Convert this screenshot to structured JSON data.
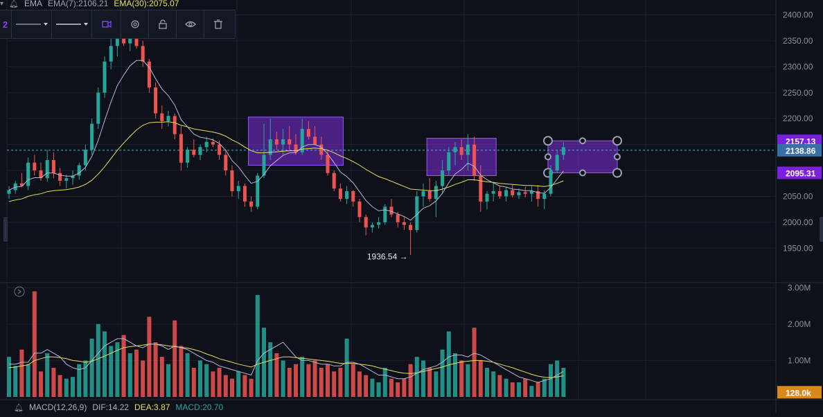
{
  "indicator_top": {
    "name": "EMA",
    "ema7": "EMA(7):2106.21",
    "ema30": "EMA(30):2075.07"
  },
  "indicator_bottom": {
    "name": "MACD(12,26,9)",
    "dif": "DIF:14.22",
    "dea": "DEA:3.87",
    "macd": "MACD:20.70"
  },
  "price_badges": {
    "upper": "2157.13",
    "current": "2138.86",
    "lower": "2095.31",
    "volume": "128.0k"
  },
  "annotations": {
    "low_label": "1936.54 →"
  },
  "colors": {
    "background": "#0e111a",
    "up": "#26a69a",
    "down": "#ef5350",
    "ema7": "#b7b4d6",
    "ema30": "#e6e05a",
    "box_fill": "#7b2fd8",
    "badge_purple": "#7b1fe0",
    "badge_blue": "#3b6fa8",
    "badge_orange": "#d9881a"
  },
  "toolbar_icons": [
    "line-style-icon",
    "line-width-icon",
    "color-icon",
    "settings-icon",
    "lock-icon",
    "eye-icon",
    "trash-icon"
  ],
  "chart_data": [
    {
      "type": "candlestick",
      "y_axis_side": "right",
      "y_ticks": [
        "2400.00",
        "2350.00",
        "2300.00",
        "2250.00",
        "2200.00",
        "2150.00",
        "2100.00",
        "2050.00",
        "2000.00",
        "1950.00"
      ],
      "ylim": [
        1925,
        2410
      ],
      "series": [
        {
          "name": "EMA(7)",
          "type": "line"
        },
        {
          "name": "EMA(30)",
          "type": "line"
        }
      ],
      "ohlc": [
        [
          2055,
          2070,
          2045,
          2062
        ],
        [
          2062,
          2080,
          2055,
          2075
        ],
        [
          2075,
          2095,
          2068,
          2070
        ],
        [
          2070,
          2125,
          2062,
          2115
        ],
        [
          2115,
          2130,
          2090,
          2100
        ],
        [
          2100,
          2115,
          2080,
          2085
        ],
        [
          2085,
          2140,
          2078,
          2120
        ],
        [
          2120,
          2135,
          2085,
          2095
        ],
        [
          2095,
          2105,
          2070,
          2080
        ],
        [
          2080,
          2092,
          2065,
          2085
        ],
        [
          2085,
          2100,
          2072,
          2090
        ],
        [
          2090,
          2115,
          2082,
          2110
        ],
        [
          2110,
          2150,
          2100,
          2140
        ],
        [
          2140,
          2200,
          2130,
          2190
        ],
        [
          2190,
          2260,
          2180,
          2250
        ],
        [
          2250,
          2320,
          2240,
          2310
        ],
        [
          2310,
          2360,
          2295,
          2340
        ],
        [
          2340,
          2375,
          2320,
          2360
        ],
        [
          2360,
          2390,
          2340,
          2345
        ],
        [
          2345,
          2370,
          2330,
          2355
        ],
        [
          2355,
          2380,
          2335,
          2340
        ],
        [
          2340,
          2350,
          2300,
          2310
        ],
        [
          2310,
          2315,
          2250,
          2260
        ],
        [
          2260,
          2270,
          2200,
          2210
        ],
        [
          2210,
          2225,
          2180,
          2195
        ],
        [
          2195,
          2215,
          2185,
          2205
        ],
        [
          2205,
          2210,
          2160,
          2170
        ],
        [
          2170,
          2185,
          2100,
          2115
        ],
        [
          2115,
          2145,
          2105,
          2140
        ],
        [
          2140,
          2160,
          2125,
          2130
        ],
        [
          2130,
          2150,
          2120,
          2145
        ],
        [
          2145,
          2165,
          2135,
          2155
        ],
        [
          2155,
          2162,
          2145,
          2150
        ],
        [
          2150,
          2158,
          2120,
          2130
        ],
        [
          2130,
          2140,
          2090,
          2100
        ],
        [
          2100,
          2110,
          2050,
          2060
        ],
        [
          2060,
          2080,
          2045,
          2070
        ],
        [
          2070,
          2075,
          2030,
          2040
        ],
        [
          2040,
          2050,
          2020,
          2030
        ],
        [
          2030,
          2095,
          2025,
          2090
        ],
        [
          2090,
          2190,
          2085,
          2130
        ],
        [
          2130,
          2200,
          2120,
          2160
        ],
        [
          2160,
          2175,
          2140,
          2150
        ],
        [
          2150,
          2180,
          2130,
          2160
        ],
        [
          2160,
          2185,
          2140,
          2150
        ],
        [
          2150,
          2170,
          2130,
          2135
        ],
        [
          2135,
          2200,
          2130,
          2180
        ],
        [
          2180,
          2195,
          2160,
          2165
        ],
        [
          2165,
          2185,
          2150,
          2150
        ],
        [
          2150,
          2165,
          2120,
          2130
        ],
        [
          2130,
          2140,
          2090,
          2095
        ],
        [
          2095,
          2100,
          2060,
          2065
        ],
        [
          2065,
          2075,
          2040,
          2045
        ],
        [
          2045,
          2070,
          2035,
          2060
        ],
        [
          2060,
          2062,
          2030,
          2040
        ],
        [
          2040,
          2045,
          2000,
          2010
        ],
        [
          2010,
          2015,
          1975,
          1990
        ],
        [
          1990,
          2000,
          1980,
          1995
        ],
        [
          1995,
          2010,
          1988,
          2000
        ],
        [
          2000,
          2035,
          1995,
          2030
        ],
        [
          2030,
          2045,
          2010,
          2015
        ],
        [
          2015,
          2020,
          1990,
          2000
        ],
        [
          2000,
          2010,
          1985,
          1995
        ],
        [
          1995,
          2000,
          1937,
          1985
        ],
        [
          1985,
          2060,
          1980,
          2050
        ],
        [
          2050,
          2075,
          2030,
          2060
        ],
        [
          2060,
          2085,
          2040,
          2045
        ],
        [
          2045,
          2080,
          2010,
          2070
        ],
        [
          2070,
          2120,
          2055,
          2100
        ],
        [
          2100,
          2145,
          2090,
          2135
        ],
        [
          2135,
          2155,
          2110,
          2145
        ],
        [
          2145,
          2160,
          2120,
          2130
        ],
        [
          2130,
          2170,
          2100,
          2150
        ],
        [
          2150,
          2165,
          2080,
          2090
        ],
        [
          2090,
          2110,
          2020,
          2040
        ],
        [
          2040,
          2060,
          2025,
          2055
        ],
        [
          2055,
          2075,
          2040,
          2060
        ],
        [
          2060,
          2070,
          2045,
          2050
        ],
        [
          2050,
          2068,
          2040,
          2062
        ],
        [
          2062,
          2072,
          2048,
          2052
        ],
        [
          2052,
          2065,
          2045,
          2058
        ],
        [
          2058,
          2068,
          2048,
          2055
        ],
        [
          2055,
          2070,
          2040,
          2060
        ],
        [
          2060,
          2072,
          2030,
          2045
        ],
        [
          2045,
          2062,
          2025,
          2055
        ],
        [
          2055,
          2110,
          2050,
          2100
        ],
        [
          2100,
          2140,
          2095,
          2130
        ],
        [
          2130,
          2155,
          2120,
          2145
        ]
      ],
      "ema7": [
        2062,
        2068,
        2069,
        2082,
        2086,
        2086,
        2095,
        2095,
        2091,
        2089,
        2089,
        2095,
        2106,
        2127,
        2158,
        2196,
        2232,
        2264,
        2284,
        2302,
        2312,
        2312,
        2299,
        2277,
        2257,
        2244,
        2226,
        2198,
        2184,
        2170,
        2164,
        2162,
        2159,
        2152,
        2139,
        2119,
        2107,
        2090,
        2075,
        2079,
        2092,
        2109,
        2119,
        2129,
        2134,
        2134,
        2145,
        2150,
        2150,
        2145,
        2132,
        2115,
        2097,
        2088,
        2076,
        2059,
        2042,
        2030,
        2022,
        2024,
        2021,
        2016,
        2011,
        2004,
        2015,
        2027,
        2032,
        2041,
        2056,
        2076,
        2093,
        2102,
        2114,
        2108,
        2091,
        2082,
        2076,
        2070,
        2068,
        2064,
        2063,
        2061,
        2061,
        2057,
        2056,
        2067,
        2083,
        2099
      ],
      "ema30": [
        2040,
        2043,
        2045,
        2050,
        2053,
        2055,
        2059,
        2061,
        2062,
        2063,
        2065,
        2068,
        2073,
        2081,
        2093,
        2107,
        2123,
        2139,
        2153,
        2166,
        2178,
        2187,
        2192,
        2193,
        2193,
        2194,
        2192,
        2187,
        2184,
        2180,
        2178,
        2176,
        2174,
        2171,
        2166,
        2159,
        2153,
        2145,
        2138,
        2134,
        2134,
        2135,
        2136,
        2137,
        2138,
        2138,
        2141,
        2142,
        2143,
        2142,
        2139,
        2134,
        2128,
        2123,
        2117,
        2110,
        2102,
        2095,
        2088,
        2084,
        2079,
        2074,
        2069,
        2064,
        2063,
        2062,
        2061,
        2061,
        2064,
        2068,
        2073,
        2077,
        2082,
        2082,
        2080,
        2078,
        2077,
        2075,
        2074,
        2073,
        2072,
        2071,
        2071,
        2070,
        2069,
        2071,
        2075,
        2080
      ],
      "price_lines": [
        2138.86
      ],
      "rectangles": [
        {
          "x_from": 38,
          "x_to": 52,
          "y_from": 2110,
          "y_to": 2203
        },
        {
          "x_from": 66,
          "x_to": 76,
          "y_from": 2090,
          "y_to": 2162
        },
        {
          "x_from": 85,
          "x_to": 95,
          "y_from": 2095.31,
          "y_to": 2157.13
        }
      ],
      "low_marker": {
        "index": 63,
        "value": 1936.54
      }
    },
    {
      "type": "bar",
      "y_axis_side": "right",
      "y_ticks": [
        "3.00M",
        "2.00M",
        "1.00M"
      ],
      "ylim": [
        0,
        3.1
      ],
      "volume": [
        1.1,
        0.85,
        1.3,
        0.9,
        2.9,
        0.7,
        1.2,
        0.8,
        0.6,
        0.5,
        0.55,
        0.9,
        1.0,
        1.6,
        2.0,
        1.8,
        1.4,
        1.5,
        1.7,
        1.2,
        1.3,
        1.0,
        2.2,
        1.5,
        1.1,
        0.9,
        2.1,
        1.4,
        1.2,
        0.8,
        1.0,
        0.9,
        0.7,
        0.8,
        0.6,
        0.5,
        0.7,
        0.6,
        0.5,
        2.8,
        1.9,
        1.5,
        1.2,
        1.0,
        0.8,
        0.9,
        1.1,
        0.9,
        1.0,
        0.8,
        0.9,
        0.7,
        0.8,
        1.6,
        0.9,
        0.7,
        0.6,
        0.5,
        0.4,
        0.8,
        0.5,
        0.4,
        0.5,
        0.9,
        1.1,
        1.0,
        0.8,
        0.7,
        1.3,
        1.8,
        1.2,
        1.0,
        0.9,
        1.9,
        1.0,
        0.8,
        0.7,
        0.6,
        0.5,
        0.4,
        0.4,
        0.5,
        0.3,
        0.4,
        0.5,
        0.9,
        1.0,
        0.8
      ],
      "volume_ma5": [
        0.9,
        0.9,
        0.95,
        0.95,
        1.2,
        1.2,
        1.3,
        1.2,
        1.1,
        0.9,
        0.8,
        0.75,
        0.8,
        1.0,
        1.2,
        1.4,
        1.5,
        1.6,
        1.6,
        1.5,
        1.4,
        1.35,
        1.45,
        1.45,
        1.4,
        1.3,
        1.4,
        1.35,
        1.3,
        1.2,
        1.1,
        1.0,
        0.95,
        0.85,
        0.8,
        0.75,
        0.7,
        0.65,
        0.6,
        1.0,
        1.2,
        1.3,
        1.4,
        1.5,
        1.3,
        1.1,
        1.0,
        1.0,
        0.95,
        0.9,
        0.9,
        0.85,
        0.85,
        0.95,
        0.95,
        0.9,
        0.8,
        0.7,
        0.6,
        0.6,
        0.55,
        0.5,
        0.5,
        0.55,
        0.65,
        0.75,
        0.8,
        0.85,
        0.95,
        1.1,
        1.15,
        1.15,
        1.1,
        1.2,
        1.15,
        1.05,
        0.95,
        0.85,
        0.75,
        0.65,
        0.55,
        0.5,
        0.45,
        0.4,
        0.45,
        0.5,
        0.6,
        0.7
      ],
      "volume_ma10": [
        0.8,
        0.82,
        0.85,
        0.88,
        1.0,
        1.05,
        1.1,
        1.1,
        1.08,
        1.05,
        1.0,
        0.98,
        0.95,
        0.98,
        1.05,
        1.12,
        1.2,
        1.28,
        1.35,
        1.38,
        1.4,
        1.42,
        1.45,
        1.45,
        1.43,
        1.4,
        1.38,
        1.36,
        1.34,
        1.3,
        1.25,
        1.18,
        1.12,
        1.05,
        1.0,
        0.95,
        0.9,
        0.86,
        0.82,
        0.9,
        0.95,
        1.0,
        1.05,
        1.1,
        1.1,
        1.08,
        1.06,
        1.04,
        1.02,
        1.0,
        0.98,
        0.95,
        0.92,
        0.92,
        0.92,
        0.9,
        0.88,
        0.85,
        0.8,
        0.76,
        0.72,
        0.68,
        0.65,
        0.64,
        0.66,
        0.7,
        0.74,
        0.78,
        0.82,
        0.88,
        0.92,
        0.96,
        0.98,
        1.0,
        1.0,
        0.98,
        0.95,
        0.9,
        0.85,
        0.8,
        0.74,
        0.68,
        0.62,
        0.57,
        0.54,
        0.53,
        0.55,
        0.58
      ]
    }
  ]
}
